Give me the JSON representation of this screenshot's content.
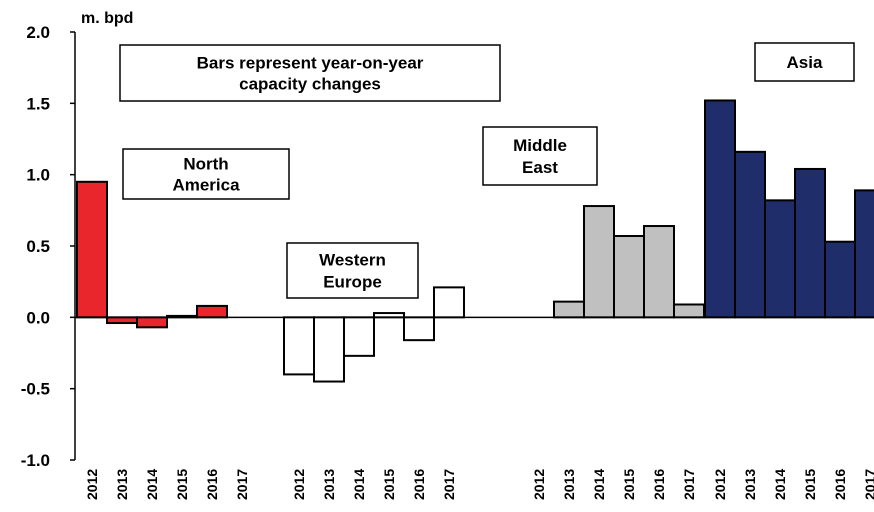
{
  "chart_data": {
    "type": "bar",
    "unit": "m. bpd",
    "ylim": [
      -1.0,
      2.0
    ],
    "yticks": [
      "2.0",
      "1.5",
      "1.0",
      "0.5",
      "0.0",
      "-0.5",
      "-1.0"
    ],
    "annotation": [
      "Bars represent year-on-year",
      "capacity changes"
    ],
    "groups": [
      {
        "name": [
          "North",
          "America"
        ],
        "color": "#e8262b",
        "categories": [
          "2012",
          "2013",
          "2014",
          "2015",
          "2016",
          "2017"
        ],
        "values": [
          0.95,
          -0.04,
          -0.07,
          0.01,
          0.08,
          0.0
        ]
      },
      {
        "name": [
          "Western",
          "Europe"
        ],
        "color": "#ffffff",
        "categories": [
          "2012",
          "2013",
          "2014",
          "2015",
          "2016",
          "2017"
        ],
        "values": [
          -0.4,
          -0.45,
          -0.27,
          0.03,
          -0.16,
          0.21
        ]
      },
      {
        "name": [
          "Middle",
          "East"
        ],
        "color": "#c0c0c0",
        "categories": [
          "2012",
          "2013",
          "2014",
          "2015",
          "2016",
          "2017"
        ],
        "values": [
          0.0,
          0.11,
          0.78,
          0.57,
          0.64,
          0.09
        ]
      },
      {
        "name": [
          "Asia"
        ],
        "color": "#1f2d6b",
        "categories": [
          "2012",
          "2013",
          "2014",
          "2015",
          "2016",
          "2017"
        ],
        "values": [
          1.52,
          1.16,
          0.82,
          1.04,
          0.53,
          0.89
        ]
      }
    ]
  }
}
